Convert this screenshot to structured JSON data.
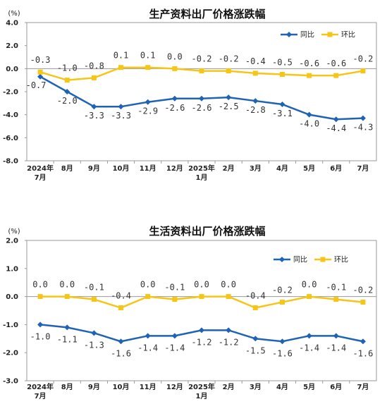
{
  "chart_data": [
    {
      "type": "line",
      "title": "生产资料出厂价格涨跌幅",
      "unit_label": "(%)",
      "categories": [
        [
          "2024年",
          "7月"
        ],
        [
          "8月"
        ],
        [
          "9月"
        ],
        [
          "10月"
        ],
        [
          "11月"
        ],
        [
          "12月"
        ],
        [
          "2025年",
          "1月"
        ],
        [
          "2月"
        ],
        [
          "3月"
        ],
        [
          "4月"
        ],
        [
          "5月"
        ],
        [
          "6月"
        ],
        [
          "7月"
        ]
      ],
      "ylim": [
        -8.0,
        4.0
      ],
      "yticks": [
        "4.0",
        "2.0",
        "0.0",
        "-2.0",
        "-4.0",
        "-6.0",
        "-8.0"
      ],
      "series": [
        {
          "name": "同比",
          "color": "#1f63b5",
          "values": [
            -0.7,
            -2.0,
            -3.3,
            -3.3,
            -2.9,
            -2.6,
            -2.6,
            -2.5,
            -2.8,
            -3.1,
            -4.0,
            -4.4,
            -4.3
          ],
          "labels": [
            "-0.7",
            "-2.0",
            "-3.3",
            "-3.3",
            "-2.9",
            "-2.6",
            "-2.6",
            "-2.5",
            "-2.8",
            "-3.1",
            "-4.0",
            "-4.4",
            "-4.3"
          ]
        },
        {
          "name": "环比",
          "color": "#f5c518",
          "values": [
            -0.3,
            -1.0,
            -0.8,
            0.1,
            0.1,
            0.0,
            -0.2,
            -0.2,
            -0.4,
            -0.5,
            -0.6,
            -0.6,
            -0.2
          ],
          "labels": [
            "-0.3",
            "-1.0",
            "-0.8",
            "0.1",
            "0.1",
            "0.0",
            "-0.2",
            "-0.2",
            "-0.4",
            "-0.5",
            "-0.6",
            "-0.6",
            "-0.2"
          ]
        }
      ],
      "grid": false,
      "legend": "top-right"
    },
    {
      "type": "line",
      "title": "生活资料出厂价格涨跌幅",
      "unit_label": "(%)",
      "categories": [
        [
          "2024年",
          "7月"
        ],
        [
          "8月"
        ],
        [
          "9月"
        ],
        [
          "10月"
        ],
        [
          "11月"
        ],
        [
          "12月"
        ],
        [
          "2025年",
          "1月"
        ],
        [
          "2月"
        ],
        [
          "3月"
        ],
        [
          "4月"
        ],
        [
          "5月"
        ],
        [
          "6月"
        ],
        [
          "7月"
        ]
      ],
      "ylim": [
        -3.0,
        2.0
      ],
      "yticks": [
        "2.0",
        "1.0",
        "0.0",
        "-1.0",
        "-2.0",
        "-3.0"
      ],
      "series": [
        {
          "name": "同比",
          "color": "#1f63b5",
          "values": [
            -1.0,
            -1.1,
            -1.3,
            -1.6,
            -1.4,
            -1.4,
            -1.2,
            -1.2,
            -1.5,
            -1.6,
            -1.4,
            -1.4,
            -1.6
          ],
          "labels": [
            "-1.0",
            "-1.1",
            "-1.3",
            "-1.6",
            "-1.4",
            "-1.4",
            "-1.2",
            "-1.2",
            "-1.5",
            "-1.6",
            "-1.4",
            "-1.4",
            "-1.6"
          ]
        },
        {
          "name": "环比",
          "color": "#f5c518",
          "values": [
            0.0,
            0.0,
            -0.1,
            -0.4,
            0.0,
            -0.1,
            0.0,
            0.0,
            -0.4,
            -0.2,
            0.0,
            -0.1,
            -0.2
          ],
          "labels": [
            "0.0",
            "0.0",
            "-0.1",
            "-0.4",
            "0.0",
            "-0.1",
            "0.0",
            "0.0",
            "-0.4",
            "-0.2",
            "0.0",
            "-0.1",
            "-0.2"
          ]
        }
      ],
      "grid": false,
      "legend": "top-right"
    }
  ]
}
